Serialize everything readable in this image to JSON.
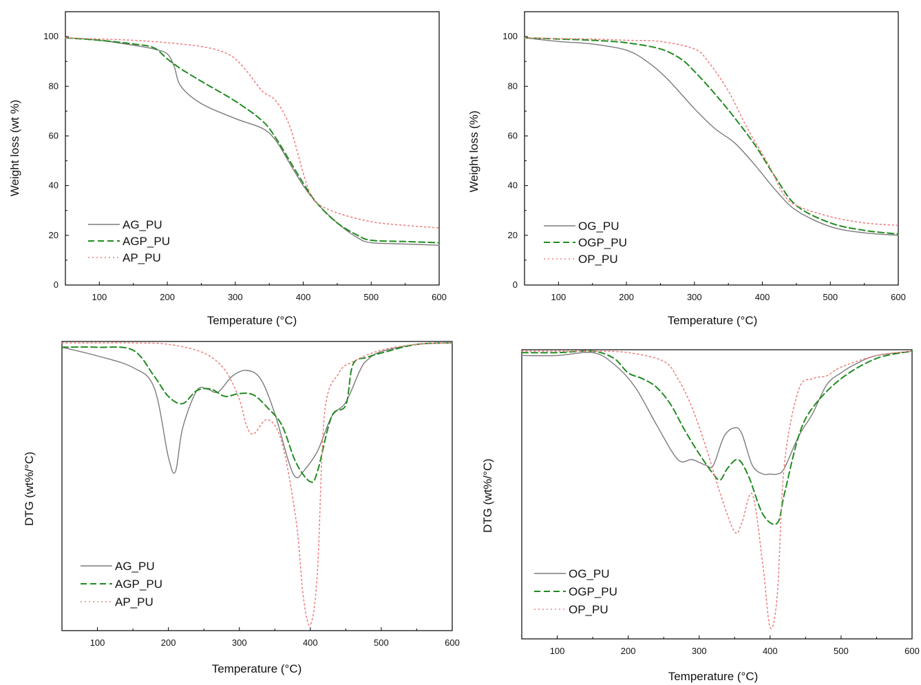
{
  "chart_data": [
    {
      "type": "line",
      "xlabel": "Temperature (°C)",
      "ylabel": "Weight loss (wt %)",
      "xlim": [
        50,
        600
      ],
      "ylim": [
        0,
        110
      ],
      "xticks": [
        100,
        200,
        300,
        400,
        500,
        600
      ],
      "yticks": [
        0,
        20,
        40,
        60,
        80,
        100
      ],
      "legend_position": "bottom-left",
      "series": [
        {
          "name": "AG_PU",
          "color": "#7a7a7a",
          "style": "solid",
          "x": [
            50,
            100,
            150,
            180,
            200,
            210,
            220,
            250,
            300,
            340,
            360,
            380,
            400,
            420,
            450,
            480,
            500,
            550,
            600
          ],
          "y": [
            99.5,
            98.5,
            96.5,
            95,
            93,
            88,
            80,
            73,
            67,
            63,
            58,
            49,
            40,
            33,
            25,
            19,
            17,
            16.5,
            16
          ]
        },
        {
          "name": "AGP_PU",
          "color": "#1f8a1f",
          "style": "dashed",
          "x": [
            50,
            100,
            150,
            180,
            200,
            220,
            250,
            300,
            340,
            360,
            380,
            400,
            420,
            450,
            480,
            500,
            550,
            600
          ],
          "y": [
            99.5,
            98.5,
            97,
            95.5,
            91,
            87,
            82,
            74,
            66,
            59,
            50,
            41,
            33,
            25,
            20,
            18,
            17.5,
            17
          ]
        },
        {
          "name": "AP_PU",
          "color": "#f08080",
          "style": "dotted",
          "x": [
            50,
            100,
            150,
            200,
            250,
            280,
            300,
            320,
            340,
            360,
            380,
            400,
            410,
            420,
            450,
            500,
            550,
            600
          ],
          "y": [
            99.5,
            99,
            98.5,
            97.5,
            96,
            94,
            91,
            85,
            78,
            74,
            64,
            45,
            37,
            33,
            29,
            25.5,
            24,
            23
          ]
        }
      ]
    },
    {
      "type": "line",
      "xlabel": "Temperature (°C)",
      "ylabel": "Weight loss (%)",
      "xlim": [
        50,
        600
      ],
      "ylim": [
        0,
        110
      ],
      "xticks": [
        100,
        200,
        300,
        400,
        500,
        600
      ],
      "yticks": [
        0,
        20,
        40,
        60,
        80,
        100
      ],
      "legend_position": "bottom-left",
      "series": [
        {
          "name": "OG_PU",
          "color": "#7a7a7a",
          "style": "solid",
          "x": [
            50,
            100,
            150,
            200,
            230,
            260,
            300,
            330,
            360,
            390,
            420,
            450,
            500,
            550,
            600
          ],
          "y": [
            99.5,
            98,
            97,
            94.5,
            90,
            83,
            71,
            63,
            57,
            48,
            38,
            30,
            23.5,
            21,
            20
          ]
        },
        {
          "name": "OGP_PU",
          "color": "#1f8a1f",
          "style": "dashed",
          "x": [
            50,
            100,
            150,
            200,
            250,
            280,
            300,
            330,
            360,
            390,
            420,
            450,
            500,
            550,
            600
          ],
          "y": [
            99.5,
            99,
            98.5,
            97.5,
            95,
            91,
            86,
            77,
            67,
            56,
            43,
            32,
            25,
            22,
            20.5
          ]
        },
        {
          "name": "OP_PU",
          "color": "#f08080",
          "style": "dotted",
          "x": [
            50,
            100,
            150,
            200,
            250,
            300,
            320,
            350,
            380,
            410,
            430,
            450,
            500,
            550,
            600
          ],
          "y": [
            99.5,
            99.2,
            99,
            98.5,
            98,
            95,
            90,
            78,
            62,
            48,
            37,
            32,
            27.5,
            25,
            24
          ]
        }
      ]
    },
    {
      "type": "line",
      "xlabel": "Temperature (°C)",
      "ylabel": "DTG (wt%/°C)",
      "xlim": [
        50,
        600
      ],
      "ylim": [
        -1,
        0
      ],
      "xticks": [
        100,
        200,
        300,
        400,
        500,
        600
      ],
      "legend_position": "bottom-left",
      "series": [
        {
          "name": "AG_PU",
          "color": "#7a7a7a",
          "style": "solid",
          "x": [
            50,
            100,
            150,
            180,
            200,
            210,
            220,
            240,
            255,
            270,
            290,
            310,
            330,
            350,
            370,
            380,
            390,
            410,
            430,
            450,
            470,
            480,
            500,
            550,
            600
          ],
          "y": [
            -0.02,
            -0.05,
            -0.09,
            -0.16,
            -0.4,
            -0.45,
            -0.3,
            -0.17,
            -0.165,
            -0.175,
            -0.12,
            -0.1,
            -0.13,
            -0.25,
            -0.42,
            -0.47,
            -0.45,
            -0.38,
            -0.26,
            -0.21,
            -0.1,
            -0.065,
            -0.035,
            -0.01,
            -0.005
          ]
        },
        {
          "name": "AGP_PU",
          "color": "#1f8a1f",
          "style": "dashed",
          "x": [
            50,
            100,
            150,
            180,
            200,
            220,
            240,
            260,
            280,
            300,
            320,
            340,
            360,
            380,
            400,
            410,
            430,
            450,
            460,
            480,
            500,
            550,
            600
          ],
          "y": [
            -0.02,
            -0.02,
            -0.03,
            -0.12,
            -0.19,
            -0.215,
            -0.17,
            -0.165,
            -0.19,
            -0.18,
            -0.185,
            -0.23,
            -0.29,
            -0.42,
            -0.485,
            -0.45,
            -0.26,
            -0.22,
            -0.08,
            -0.055,
            -0.04,
            -0.01,
            -0.005
          ]
        },
        {
          "name": "AP_PU",
          "color": "#f08080",
          "style": "dotted",
          "x": [
            50,
            100,
            150,
            200,
            250,
            280,
            300,
            310,
            320,
            340,
            360,
            380,
            390,
            400,
            410,
            420,
            440,
            460,
            500,
            550,
            600
          ],
          "y": [
            -0.005,
            -0.005,
            -0.005,
            -0.01,
            -0.04,
            -0.1,
            -0.2,
            -0.29,
            -0.32,
            -0.27,
            -0.35,
            -0.62,
            -0.88,
            -0.98,
            -0.8,
            -0.25,
            -0.11,
            -0.07,
            -0.03,
            -0.01,
            -0.005
          ]
        }
      ]
    },
    {
      "type": "line",
      "xlabel": "Temperature (°C)",
      "ylabel": "DTG (wt%/°C)",
      "xlim": [
        50,
        600
      ],
      "ylim": [
        -1,
        0
      ],
      "xticks": [
        100,
        200,
        300,
        400,
        500,
        600
      ],
      "legend_position": "bottom-left",
      "series": [
        {
          "name": "OG_PU",
          "color": "#7a7a7a",
          "style": "solid",
          "x": [
            50,
            100,
            150,
            180,
            210,
            240,
            270,
            290,
            310,
            320,
            335,
            350,
            360,
            375,
            390,
            400,
            410,
            420,
            440,
            460,
            480,
            500,
            520,
            550,
            600
          ],
          "y": [
            -0.02,
            -0.02,
            -0.01,
            -0.05,
            -0.13,
            -0.26,
            -0.38,
            -0.38,
            -0.4,
            -0.4,
            -0.3,
            -0.27,
            -0.29,
            -0.4,
            -0.43,
            -0.43,
            -0.43,
            -0.41,
            -0.3,
            -0.22,
            -0.12,
            -0.08,
            -0.05,
            -0.02,
            -0.005
          ]
        },
        {
          "name": "OGP_PU",
          "color": "#1f8a1f",
          "style": "dashed",
          "x": [
            50,
            100,
            150,
            180,
            200,
            220,
            240,
            260,
            280,
            300,
            320,
            330,
            340,
            355,
            370,
            390,
            410,
            420,
            440,
            460,
            500,
            550,
            600
          ],
          "y": [
            -0.01,
            -0.01,
            -0.005,
            -0.03,
            -0.08,
            -0.1,
            -0.13,
            -0.19,
            -0.28,
            -0.36,
            -0.43,
            -0.45,
            -0.41,
            -0.38,
            -0.44,
            -0.57,
            -0.6,
            -0.5,
            -0.3,
            -0.2,
            -0.1,
            -0.03,
            -0.005
          ]
        },
        {
          "name": "OP_PU",
          "color": "#f08080",
          "style": "dotted",
          "x": [
            50,
            100,
            150,
            200,
            250,
            270,
            290,
            310,
            330,
            350,
            360,
            375,
            390,
            400,
            410,
            420,
            440,
            460,
            480,
            500,
            550,
            600
          ],
          "y": [
            -0.005,
            -0.005,
            -0.005,
            -0.01,
            -0.04,
            -0.1,
            -0.2,
            -0.34,
            -0.5,
            -0.63,
            -0.6,
            -0.5,
            -0.75,
            -0.96,
            -0.85,
            -0.4,
            -0.14,
            -0.1,
            -0.09,
            -0.06,
            -0.02,
            -0.005
          ]
        }
      ]
    }
  ]
}
